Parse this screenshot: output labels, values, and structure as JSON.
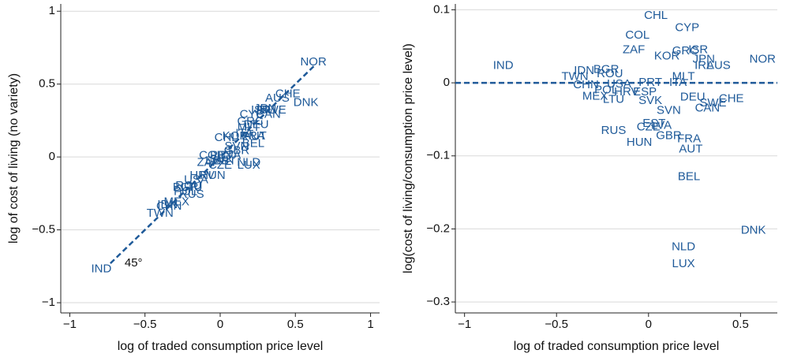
{
  "chart_data": [
    {
      "type": "scatter",
      "xlabel": "log of traded consumption price level",
      "ylabel": "log of cost of living (no variety)",
      "color": "#1f5a99",
      "xlim": [
        -1.06,
        1.06
      ],
      "ylim": [
        -1.07,
        1.05
      ],
      "xticks": [
        {
          "value": -1,
          "label": "−1"
        },
        {
          "value": -0.5,
          "label": "−0.5"
        },
        0,
        0.5,
        1
      ],
      "yticks": [
        {
          "value": -1,
          "label": "−1"
        },
        {
          "value": -0.5,
          "label": "−0.5"
        },
        0,
        0.5,
        1
      ],
      "grid": true,
      "ref_line": {
        "x": [
          -0.73,
          0.63
        ],
        "y": [
          -0.73,
          0.63
        ]
      },
      "annotation": "45°",
      "labels": [
        "CHL",
        "CYP",
        "COL",
        "ZAF",
        "KOR",
        "GRC",
        "ISR",
        "JPN",
        "IRL",
        "AUS",
        "NOR",
        "IND",
        "IDN",
        "TWN",
        "BGR",
        "ROU",
        "CHN",
        "USA",
        "PRT",
        "ITA",
        "MLT",
        "POL",
        "MEX",
        "HRV",
        "ESP",
        "LTU",
        "SVK",
        "DEU",
        "SWE",
        "CHE",
        "SVN",
        "CAN",
        "EST",
        "CZE",
        "LVA",
        "RUS",
        "HUN",
        "GBR",
        "FRA",
        "AUT",
        "BEL",
        "DNK",
        "NLD",
        "LUX"
      ],
      "x": [
        0.04,
        0.21,
        -0.06,
        -0.08,
        0.1,
        0.2,
        0.27,
        0.3,
        0.3,
        0.38,
        0.62,
        -0.79,
        -0.35,
        -0.4,
        -0.23,
        -0.21,
        -0.34,
        -0.16,
        0.01,
        0.16,
        0.19,
        -0.23,
        -0.29,
        -0.12,
        -0.02,
        -0.19,
        0.01,
        0.24,
        0.35,
        0.45,
        0.11,
        0.32,
        0.03,
        0.0,
        0.07,
        -0.19,
        -0.05,
        0.11,
        0.22,
        0.23,
        0.22,
        0.57,
        0.19,
        0.19
      ],
      "y": [
        0.13,
        0.29,
        0.01,
        -0.04,
        0.14,
        0.24,
        0.32,
        0.33,
        0.32,
        0.4,
        0.65,
        -0.77,
        -0.33,
        -0.39,
        -0.21,
        -0.2,
        -0.34,
        -0.16,
        0.01,
        0.16,
        0.2,
        -0.24,
        -0.31,
        -0.13,
        -0.03,
        -0.21,
        -0.02,
        0.22,
        0.32,
        0.43,
        0.07,
        0.29,
        -0.03,
        -0.06,
        0.01,
        -0.26,
        -0.13,
        0.04,
        0.14,
        0.14,
        0.09,
        0.37,
        -0.04,
        -0.06
      ]
    },
    {
      "type": "scatter",
      "xlabel": "log of traded consumption price level",
      "ylabel": "log(cost of living/consumption price level)",
      "color": "#1f5a99",
      "xlim": [
        -1.05,
        0.7
      ],
      "ylim": [
        -0.315,
        0.108
      ],
      "xticks": [
        {
          "value": -1,
          "label": "−1"
        },
        {
          "value": -0.5,
          "label": "−0.5"
        },
        0,
        0.5
      ],
      "yticks": [
        {
          "value": -0.3,
          "label": "−0.3"
        },
        {
          "value": -0.2,
          "label": "−0.2"
        },
        {
          "value": -0.1,
          "label": "−0.1"
        },
        0,
        0.1
      ],
      "grid": true,
      "hline": 0,
      "labels": [
        "CHL",
        "CYP",
        "COL",
        "ZAF",
        "KOR",
        "GRC",
        "ISR",
        "JPN",
        "IRL",
        "AUS",
        "NOR",
        "IND",
        "IDN",
        "TWN",
        "BGR",
        "ROU",
        "CHN",
        "USA",
        "PRT",
        "ITA",
        "MLT",
        "POL",
        "MEX",
        "HRV",
        "ESP",
        "LTU",
        "SVK",
        "DEU",
        "SWE",
        "CHE",
        "SVN",
        "CAN",
        "EST",
        "CZE",
        "LVA",
        "RUS",
        "HUN",
        "GBR",
        "FRA",
        "AUT",
        "BEL",
        "DNK",
        "NLD",
        "LUX"
      ],
      "x": [
        0.04,
        0.21,
        -0.06,
        -0.08,
        0.1,
        0.2,
        0.27,
        0.3,
        0.3,
        0.38,
        0.62,
        -0.79,
        -0.35,
        -0.4,
        -0.23,
        -0.21,
        -0.34,
        -0.16,
        0.01,
        0.16,
        0.19,
        -0.23,
        -0.29,
        -0.12,
        -0.02,
        -0.19,
        0.01,
        0.24,
        0.35,
        0.45,
        0.11,
        0.32,
        0.03,
        0.0,
        0.07,
        -0.19,
        -0.05,
        0.11,
        0.22,
        0.23,
        0.22,
        0.57,
        0.19,
        0.19
      ],
      "y": [
        0.092,
        0.075,
        0.065,
        0.045,
        0.036,
        0.043,
        0.045,
        0.032,
        0.023,
        0.023,
        0.032,
        0.023,
        0.016,
        0.008,
        0.018,
        0.012,
        -0.003,
        -0.002,
        0.0,
        0.0,
        0.008,
        -0.01,
        -0.019,
        -0.013,
        -0.013,
        -0.023,
        -0.025,
        -0.02,
        -0.028,
        -0.022,
        -0.038,
        -0.035,
        -0.056,
        -0.061,
        -0.059,
        -0.066,
        -0.082,
        -0.073,
        -0.077,
        -0.091,
        -0.129,
        -0.202,
        -0.225,
        -0.248
      ]
    }
  ]
}
